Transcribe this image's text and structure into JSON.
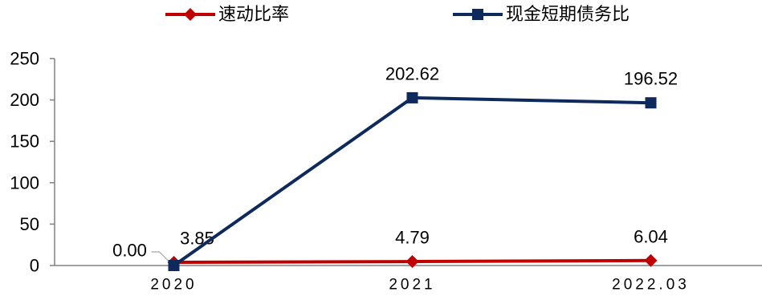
{
  "chart_data": {
    "type": "line",
    "categories": [
      "2020",
      "2021",
      "2022.03"
    ],
    "series": [
      {
        "name": "速动比率",
        "values": [
          3.85,
          4.79,
          6.04
        ],
        "labels": [
          "3.85",
          "4.79",
          "6.04"
        ],
        "color": "#C00000",
        "marker": "diamond"
      },
      {
        "name": "现金短期债务比",
        "values": [
          0.0,
          202.62,
          196.52
        ],
        "labels": [
          "0.00",
          "202.62",
          "196.52"
        ],
        "color": "#0E2A5C",
        "marker": "square"
      }
    ],
    "y_ticks": [
      "0",
      "50",
      "100",
      "150",
      "200",
      "250"
    ],
    "ylim": [
      0,
      250
    ],
    "grid": false,
    "legend_position": "top"
  }
}
